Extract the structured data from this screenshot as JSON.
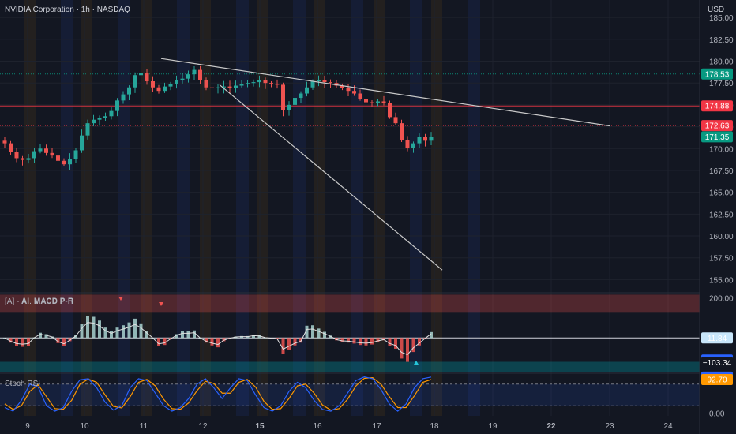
{
  "header": {
    "title": "NVIDIA Corporation · 1h · NASDAQ",
    "currency": "USD"
  },
  "colors": {
    "background": "#131722",
    "up": "#26a69a",
    "down": "#ef5350",
    "trendline": "#c9c9c9",
    "rsi_k": "#2962ff",
    "rsi_d": "#ff9800"
  },
  "chart_data": [
    {
      "type": "candlestick",
      "title": "NVIDIA Corporation · 1h · NASDAQ",
      "ylim": [
        153.5,
        187
      ],
      "y_ticks": [
        "185.00",
        "182.50",
        "180.00",
        "177.50",
        "175.00",
        "172.50",
        "170.00",
        "167.50",
        "165.00",
        "162.50",
        "160.00",
        "157.50",
        "155.00"
      ],
      "x_ticks": [
        "9",
        "10",
        "11",
        "12",
        "15",
        "16",
        "17",
        "18",
        "19",
        "22",
        "23",
        "24"
      ],
      "x_ticks_bold": [
        "15",
        "22"
      ],
      "horizontal_levels": [
        {
          "value": 178.53,
          "label": "178.53",
          "color": "#089981",
          "style": "dotted"
        },
        {
          "value": 174.88,
          "label": "174.88",
          "color": "#f23645",
          "style": "solid"
        },
        {
          "value": 172.63,
          "label": "172.63",
          "color": "#f23645",
          "style": "dotted"
        }
      ],
      "last_price": {
        "value": 171.35,
        "label": "171.35",
        "color": "#089981"
      },
      "trendlines": [
        {
          "from": [
            "11 open",
            180.3
          ],
          "to": [
            "23",
            172.6
          ]
        },
        {
          "from": [
            "12 late",
            177.3
          ],
          "to": [
            "18 early",
            156.1
          ]
        }
      ],
      "closes": [
        170.6,
        169.6,
        168.9,
        168.7,
        168.9,
        169.7,
        170.0,
        169.5,
        169.2,
        168.6,
        168.2,
        168.8,
        169.8,
        171.5,
        172.9,
        173.3,
        173.5,
        173.7,
        174.3,
        175.5,
        176.2,
        177.0,
        178.4,
        178.6,
        177.7,
        177.0,
        176.6,
        177.1,
        177.4,
        177.8,
        178.0,
        178.5,
        179.0,
        177.8,
        177.0,
        176.9,
        177.0,
        177.1,
        176.9,
        177.2,
        177.4,
        177.5,
        177.6,
        177.8,
        177.5,
        177.4,
        177.3,
        174.4,
        175.0,
        175.8,
        176.3,
        177.0,
        177.7,
        177.8,
        177.6,
        177.5,
        177.2,
        176.9,
        176.6,
        176.3,
        175.7,
        175.3,
        175.2,
        175.4,
        175.2,
        173.6,
        172.9,
        171.0,
        170.1,
        170.6,
        171.3,
        170.9,
        171.35
      ]
    },
    {
      "type": "line",
      "title": "[A] - 𝐀𝐈. 𝐌𝐀𝐂𝐃 𝐏-𝐑",
      "ylim": [
        -150,
        220
      ],
      "y_ticks": [
        "200.00"
      ],
      "series_tags": [
        {
          "value": 11.84,
          "label": "11.84",
          "bg": "#c8e6fa",
          "fg": "#131722"
        },
        {
          "value": -91.5,
          "label": "−91.50",
          "bg": "#2962ff",
          "fg": "#ffffff"
        },
        {
          "value": -103.34,
          "label": "−103.34",
          "bg": "#131722",
          "fg": "#ffffff"
        }
      ]
    },
    {
      "type": "line",
      "title": "Stoch RSI",
      "ylim": [
        -8,
        108
      ],
      "y_ticks": [
        "0.00"
      ],
      "series_tags": [
        {
          "value": 99.63,
          "label": "99.63",
          "bg": "#2962ff",
          "fg": "#ffffff"
        },
        {
          "value": 92.7,
          "label": "92.70",
          "bg": "#ff9800",
          "fg": "#ffffff"
        }
      ],
      "k": [
        15,
        5,
        35,
        80,
        72,
        20,
        5,
        15,
        60,
        92,
        95,
        70,
        30,
        8,
        20,
        70,
        95,
        90,
        55,
        20,
        5,
        15,
        40,
        80,
        95,
        70,
        40,
        70,
        95,
        90,
        50,
        15,
        5,
        20,
        60,
        85,
        70,
        35,
        10,
        5,
        20,
        55,
        90,
        100,
        95,
        65,
        25,
        5,
        25,
        70,
        95,
        99.63
      ],
      "d": [
        25,
        10,
        20,
        60,
        78,
        45,
        12,
        10,
        35,
        80,
        94,
        85,
        50,
        18,
        14,
        45,
        85,
        93,
        75,
        38,
        12,
        10,
        28,
        62,
        88,
        82,
        55,
        55,
        85,
        93,
        72,
        32,
        10,
        12,
        40,
        75,
        80,
        55,
        22,
        8,
        12,
        38,
        75,
        96,
        98,
        80,
        45,
        15,
        15,
        48,
        85,
        92.7
      ]
    }
  ]
}
